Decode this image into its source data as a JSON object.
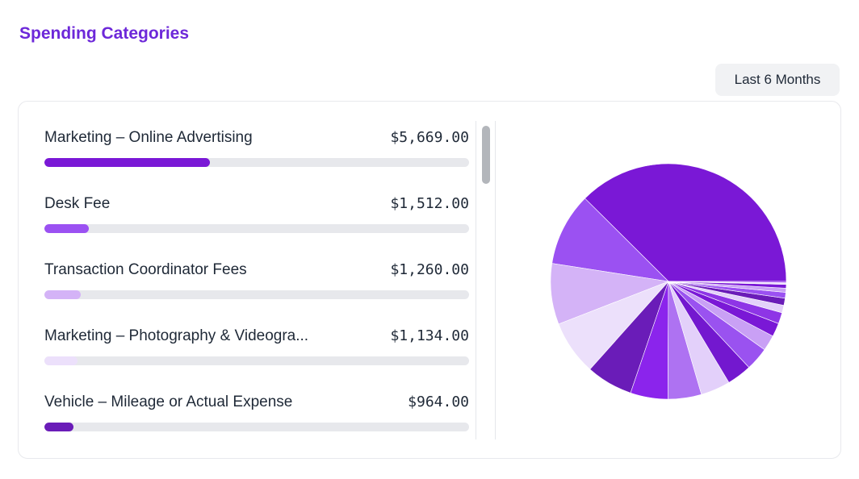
{
  "header": {
    "title": "Spending Categories",
    "period_label": "Last 6 Months"
  },
  "categories": [
    {
      "name": "Marketing – Online Advertising",
      "amount": "$5,669.00",
      "progress": 0.39,
      "color": "#7a18d6"
    },
    {
      "name": "Desk Fee",
      "amount": "$1,512.00",
      "progress": 0.105,
      "color": "#9b51f2"
    },
    {
      "name": "Transaction Coordinator Fees",
      "amount": "$1,260.00",
      "progress": 0.085,
      "color": "#d4b3f7"
    },
    {
      "name": "Marketing – Photography & Videogra...",
      "amount": "$1,134.00",
      "progress": 0.078,
      "color": "#ece0fb"
    },
    {
      "name": "Vehicle – Mileage or Actual Expense",
      "amount": "$964.00",
      "progress": 0.068,
      "color": "#6a1cb8"
    }
  ],
  "chart_data": {
    "type": "pie",
    "values": [
      5669,
      1512,
      1260,
      1134,
      964,
      775,
      694,
      612,
      513,
      482,
      326,
      281,
      232,
      156,
      148,
      120,
      85,
      78,
      35,
      25
    ],
    "colors": [
      "#7a18d6",
      "#9b51f2",
      "#d4b3f7",
      "#ece0fb",
      "#6a1cb8",
      "#8b24ec",
      "#ae72f2",
      "#e3d0fa",
      "#7318cf",
      "#9a52f0",
      "#c9a0f5",
      "#7a18d6",
      "#8e35e6",
      "#e3d0fa",
      "#6a1cb8",
      "#9b51f2",
      "#c9a0f5",
      "#7a18d6",
      "#ece0fb",
      "#8b24ec"
    ],
    "start_angle_deg": 0,
    "direction": "clockwise-from-east-reversed"
  }
}
